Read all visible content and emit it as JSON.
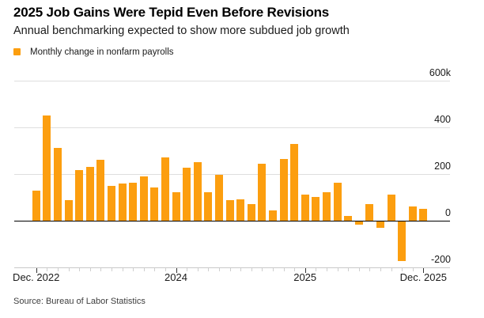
{
  "header": {
    "title": "2025 Job Gains Were Tepid Even Before Revisions",
    "subtitle": "Annual benchmarking expected to show more subdued job growth"
  },
  "legend": {
    "label": "Monthly change in nonfarm payrolls"
  },
  "footer": {
    "source": "Source: Bureau of Labor Statistics"
  },
  "colors": {
    "accent": "#fc9e0f",
    "gridline": "#dedede",
    "zero_line": "#000000",
    "axis_line": "#c9c9c9",
    "minor_tick": "#cfcfcf",
    "major_tick": "#333333",
    "text": "#1a1a1a"
  },
  "chart_data": {
    "type": "bar",
    "title": "2025 Job Gains Were Tepid Even Before Revisions",
    "subtitle": "Annual benchmarking expected to show more subdued job growth",
    "series_name": "Monthly change in nonfarm payrolls",
    "unit": "thousands of jobs (k)",
    "grid": true,
    "legend_position": "top-left",
    "ylim": [
      -200,
      600
    ],
    "x": [
      "Dec 2022",
      "Jan 2023",
      "Feb 2023",
      "Mar 2023",
      "Apr 2023",
      "May 2023",
      "Jun 2023",
      "Jul 2023",
      "Aug 2023",
      "Sep 2023",
      "Oct 2023",
      "Nov 2023",
      "Dec 2023",
      "Jan 2024",
      "Feb 2024",
      "Mar 2024",
      "Apr 2024",
      "May 2024",
      "Jun 2024",
      "Jul 2024",
      "Aug 2024",
      "Sep 2024",
      "Oct 2024",
      "Nov 2024",
      "Dec 2024",
      "Jan 2025",
      "Feb 2025",
      "Mar 2025",
      "Apr 2025",
      "May 2025",
      "Jun 2025",
      "Jul 2025",
      "Aug 2025",
      "Sep 2025",
      "Oct 2025",
      "Nov 2025",
      "Dec 2025"
    ],
    "values": [
      130,
      450,
      312,
      88,
      218,
      232,
      260,
      150,
      159,
      162,
      190,
      142,
      270,
      122,
      226,
      250,
      122,
      196,
      88,
      90,
      71,
      243,
      45,
      263,
      328,
      113,
      102,
      122,
      162,
      20,
      -16,
      72,
      -29,
      111,
      -172,
      60,
      52
    ],
    "yticks": [
      {
        "value": 600,
        "label": "600k"
      },
      {
        "value": 400,
        "label": "400"
      },
      {
        "value": 200,
        "label": "200"
      },
      {
        "value": 0,
        "label": "0"
      },
      {
        "value": -200,
        "label": "-200"
      }
    ],
    "xticks": [
      {
        "index": 0,
        "label": "Dec. 2022"
      },
      {
        "index": 13,
        "label": "2024"
      },
      {
        "index": 25,
        "label": "2025"
      },
      {
        "index": 36,
        "label": "Dec. 2025"
      }
    ],
    "bar_color": "#fc9e0f"
  }
}
